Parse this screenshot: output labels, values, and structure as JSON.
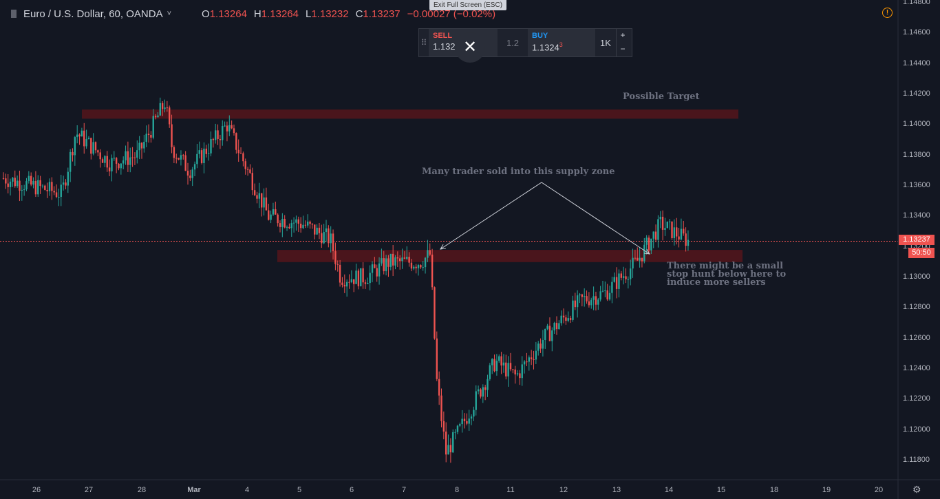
{
  "header": {
    "symbol": "Euro / U.S. Dollar, 60, OANDA",
    "chevron": "˅",
    "ohlc": [
      {
        "k": "O",
        "v": "1.13264"
      },
      {
        "k": "H",
        "v": "1.13264"
      },
      {
        "k": "L",
        "v": "1.13232"
      },
      {
        "k": "C",
        "v": "1.13237"
      },
      {
        "k": "",
        "v": "−0.00027 (−0.02%)"
      }
    ]
  },
  "exit_fullscreen": "Exit Full Screen (ESC)",
  "alert_glyph": "!",
  "trade_panel": {
    "grip": "⠿",
    "sell_label": "SELL",
    "sell_price": "1.1323",
    "spread": "1.2",
    "buy_label": "BUY",
    "buy_price": "1.1324",
    "buy_price_sup": "3",
    "quantity": "1K",
    "plus": "+",
    "minus": "−",
    "close_glyph": "✕"
  },
  "annotations": {
    "target": "Possible Target",
    "supply": "Many trader sold into this supply zone",
    "stop_hunt": "There might be a small stop hunt below here to induce more sellers"
  },
  "price_tag": "1.13237",
  "countdown": "50:50",
  "settings_glyph": "⚙",
  "colors": {
    "background": "#131722",
    "up": "#26a69a",
    "down": "#ef5350",
    "zone": "#4a151c",
    "price_line": "#ef5350",
    "annotation_text": "#6d7180"
  },
  "chart_data": {
    "type": "candlestick",
    "symbol": "EURUSD",
    "timeframe": "60",
    "ylim": [
      1.117,
      1.1481
    ],
    "y_ticks": [
      "1.14800",
      "1.14600",
      "1.14400",
      "1.14200",
      "1.14000",
      "1.13800",
      "1.13600",
      "1.13400",
      "1.13200",
      "1.13000",
      "1.12800",
      "1.12600",
      "1.12400",
      "1.12200",
      "1.12000",
      "1.11800"
    ],
    "x_ticks": [
      "26",
      "27",
      "28",
      "Mar",
      "4",
      "5",
      "6",
      "7",
      "8",
      "11",
      "12",
      "13",
      "14",
      "15",
      "18",
      "19",
      "20"
    ],
    "current_price": 1.13237,
    "zones": [
      {
        "name": "target zone",
        "low": 1.1404,
        "high": 1.141
      },
      {
        "name": "supply zone",
        "low": 1.131,
        "high": 1.1318
      }
    ],
    "path_close": [
      {
        "x": "Feb 26 00:00",
        "y": 1.1365
      },
      {
        "x": "Feb 26 12:00",
        "y": 1.1355
      },
      {
        "x": "Feb 27 00:00",
        "y": 1.1395
      },
      {
        "x": "Feb 27 12:00",
        "y": 1.1375
      },
      {
        "x": "Feb 28 00:00",
        "y": 1.138
      },
      {
        "x": "Feb 28 12:00",
        "y": 1.1415
      },
      {
        "x": "Feb 28 18:00",
        "y": 1.1385
      },
      {
        "x": "Mar 1 06:00",
        "y": 1.137
      },
      {
        "x": "Mar 1 18:00",
        "y": 1.14
      },
      {
        "x": "Mar 4 00:00",
        "y": 1.137
      },
      {
        "x": "Mar 4 12:00",
        "y": 1.134
      },
      {
        "x": "Mar 5 00:00",
        "y": 1.1335
      },
      {
        "x": "Mar 5 12:00",
        "y": 1.1325
      },
      {
        "x": "Mar 6 00:00",
        "y": 1.13
      },
      {
        "x": "Mar 6 12:00",
        "y": 1.13
      },
      {
        "x": "Mar 7 00:00",
        "y": 1.131
      },
      {
        "x": "Mar 7 12:00",
        "y": 1.131
      },
      {
        "x": "Mar 7 18:00",
        "y": 1.1315
      },
      {
        "x": "Mar 8 00:00",
        "y": 1.123
      },
      {
        "x": "Mar 8 06:00",
        "y": 1.1185
      },
      {
        "x": "Mar 8 18:00",
        "y": 1.12
      },
      {
        "x": "Mar 11 06:00",
        "y": 1.1245
      },
      {
        "x": "Mar 11 18:00",
        "y": 1.1235
      },
      {
        "x": "Mar 12 06:00",
        "y": 1.126
      },
      {
        "x": "Mar 12 18:00",
        "y": 1.1285
      },
      {
        "x": "Mar 13 06:00",
        "y": 1.129
      },
      {
        "x": "Mar 13 18:00",
        "y": 1.131
      },
      {
        "x": "Mar 14 00:00",
        "y": 1.1335
      },
      {
        "x": "Mar 14 12:00",
        "y": 1.1324
      }
    ]
  }
}
